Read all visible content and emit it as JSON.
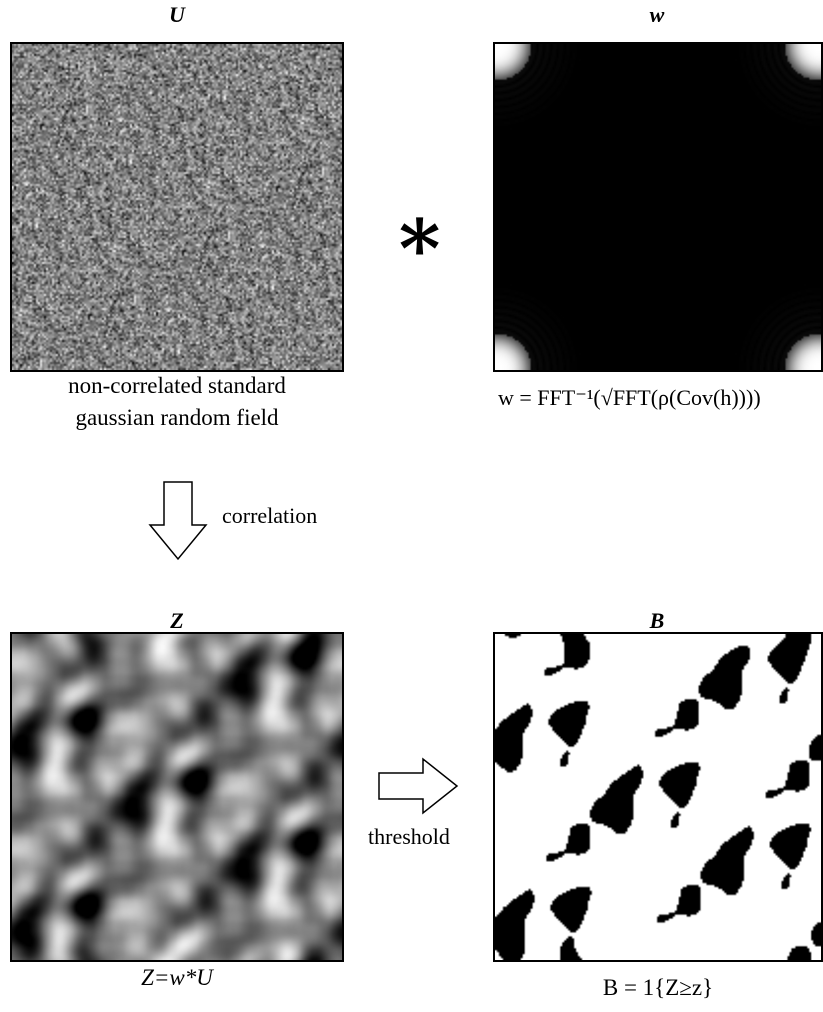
{
  "panels": {
    "u": {
      "title": "U",
      "caption_line1": "non-correlated standard",
      "caption_line2": "gaussian random field"
    },
    "w": {
      "title": "w",
      "formula": "w = FFT⁻¹(√FFT(ρ(Cov(h))))"
    },
    "z": {
      "title": "Z",
      "caption": "Z=w*U"
    },
    "b": {
      "title": "B",
      "caption": "B = 1{Z≥z}"
    }
  },
  "operators": {
    "convolution": "∗"
  },
  "arrows": {
    "down_label": "correlation",
    "right_label": "threshold"
  }
}
